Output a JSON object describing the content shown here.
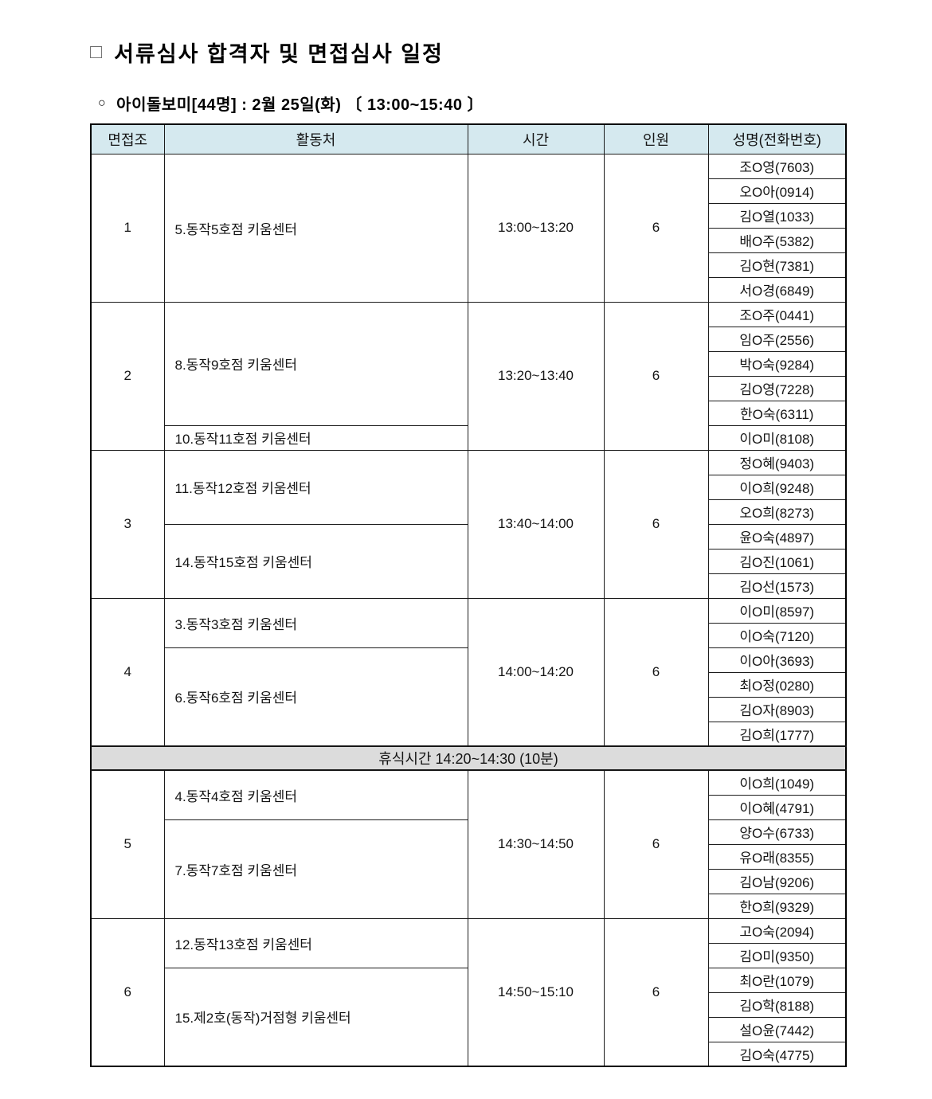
{
  "page": {
    "title_bullet": "□",
    "title": "서류심사 합격자 및 면접심사 일정",
    "subtitle_bullet": "○",
    "subtitle": "아이돌보미[44명] : 2월 25일(화) 〔 13:00~15:40 〕"
  },
  "table": {
    "headers": [
      "면접조",
      "활동처",
      "시간",
      "인원",
      "성명(전화번호)"
    ],
    "break_row_label": "휴식시간 14:20~14:30 (10분)",
    "colors": {
      "header_bg": "#d5e9ef",
      "break_bg": "#dcdcdc",
      "border": "#1c1c1c"
    },
    "groups": [
      {
        "group": "1",
        "time": "13:00~13:20",
        "count": "6",
        "locations": [
          {
            "name": "5.동작5호점 키움센터",
            "span": 6
          }
        ],
        "members": [
          "조O영(7603)",
          "오O아(0914)",
          "김O열(1033)",
          "배O주(5382)",
          "김O현(7381)",
          "서O경(6849)"
        ],
        "break_after": false
      },
      {
        "group": "2",
        "time": "13:20~13:40",
        "count": "6",
        "locations": [
          {
            "name": "8.동작9호점 키움센터",
            "span": 5
          },
          {
            "name": "10.동작11호점 키움센터",
            "span": 1
          }
        ],
        "members": [
          "조O주(0441)",
          "임O주(2556)",
          "박O숙(9284)",
          "김O영(7228)",
          "한O숙(6311)",
          "이O미(8108)"
        ],
        "break_after": false
      },
      {
        "group": "3",
        "time": "13:40~14:00",
        "count": "6",
        "locations": [
          {
            "name": "11.동작12호점 키움센터",
            "span": 3
          },
          {
            "name": "14.동작15호점 키움센터",
            "span": 3
          }
        ],
        "members": [
          "정O혜(9403)",
          "이O희(9248)",
          "오O희(8273)",
          "윤O숙(4897)",
          "김O진(1061)",
          "김O선(1573)"
        ],
        "break_after": false
      },
      {
        "group": "4",
        "time": "14:00~14:20",
        "count": "6",
        "locations": [
          {
            "name": "3.동작3호점 키움센터",
            "span": 2
          },
          {
            "name": "6.동작6호점 키움센터",
            "span": 4
          }
        ],
        "members": [
          "이O미(8597)",
          "이O숙(7120)",
          "이O아(3693)",
          "최O정(0280)",
          "김O자(8903)",
          "김O희(1777)"
        ],
        "break_after": true
      },
      {
        "group": "5",
        "time": "14:30~14:50",
        "count": "6",
        "locations": [
          {
            "name": "4.동작4호점 키움센터",
            "span": 2
          },
          {
            "name": "7.동작7호점 키움센터",
            "span": 4
          }
        ],
        "members": [
          "이O희(1049)",
          "이O혜(4791)",
          "양O수(6733)",
          "유O래(8355)",
          "김O남(9206)",
          "한O희(9329)"
        ],
        "break_after": false
      },
      {
        "group": "6",
        "time": "14:50~15:10",
        "count": "6",
        "locations": [
          {
            "name": "12.동작13호점 키움센터",
            "span": 2
          },
          {
            "name": "15.제2호(동작)거점형 키움센터",
            "span": 4
          }
        ],
        "members": [
          "고O숙(2094)",
          "김O미(9350)",
          "최O란(1079)",
          "김O학(8188)",
          "설O윤(7442)",
          "김O숙(4775)"
        ],
        "break_after": false
      }
    ]
  }
}
